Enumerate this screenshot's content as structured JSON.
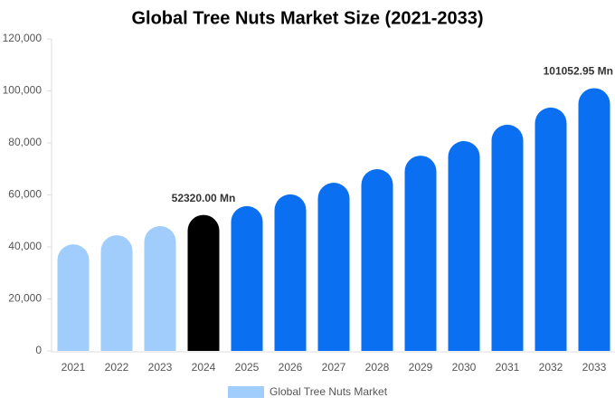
{
  "chart_data": {
    "type": "bar",
    "title": "Global Tree Nuts Market Size (2021-2033)",
    "categories": [
      "2021",
      "2022",
      "2023",
      "2024",
      "2025",
      "2026",
      "2027",
      "2028",
      "2029",
      "2030",
      "2031",
      "2032",
      "2033"
    ],
    "series": [
      {
        "name": "Global Tree Nuts Market",
        "color": "#a0cdfc",
        "bar_colors": [
          "#a0cdfc",
          "#a0cdfc",
          "#a0cdfc",
          "#000000",
          "#0a6ff0",
          "#0a6ff0",
          "#0a6ff0",
          "#0a6ff0",
          "#0a6ff0",
          "#0a6ff0",
          "#0a6ff0",
          "#0a6ff0",
          "#0a6ff0"
        ],
        "values": [
          41000,
          44500,
          48000,
          52320,
          55700,
          60200,
          64700,
          69900,
          75100,
          80700,
          87000,
          93600,
          101052.95
        ],
        "value_labels": [
          null,
          null,
          null,
          "52320.00 Mn",
          null,
          null,
          null,
          null,
          null,
          null,
          null,
          null,
          "101052.95 Mn"
        ]
      }
    ],
    "ylim": [
      0,
      120000
    ],
    "yticks": [
      0,
      {
        "value": 20000,
        "label": "20,000"
      },
      {
        "value": 40000,
        "label": "40,000"
      },
      {
        "value": 60000,
        "label": "60,000"
      },
      {
        "value": 80000,
        "label": "80,000"
      },
      {
        "value": 100000,
        "label": "100,000"
      },
      {
        "value": 120000,
        "label": "120,000"
      }
    ],
    "grid": false
  }
}
